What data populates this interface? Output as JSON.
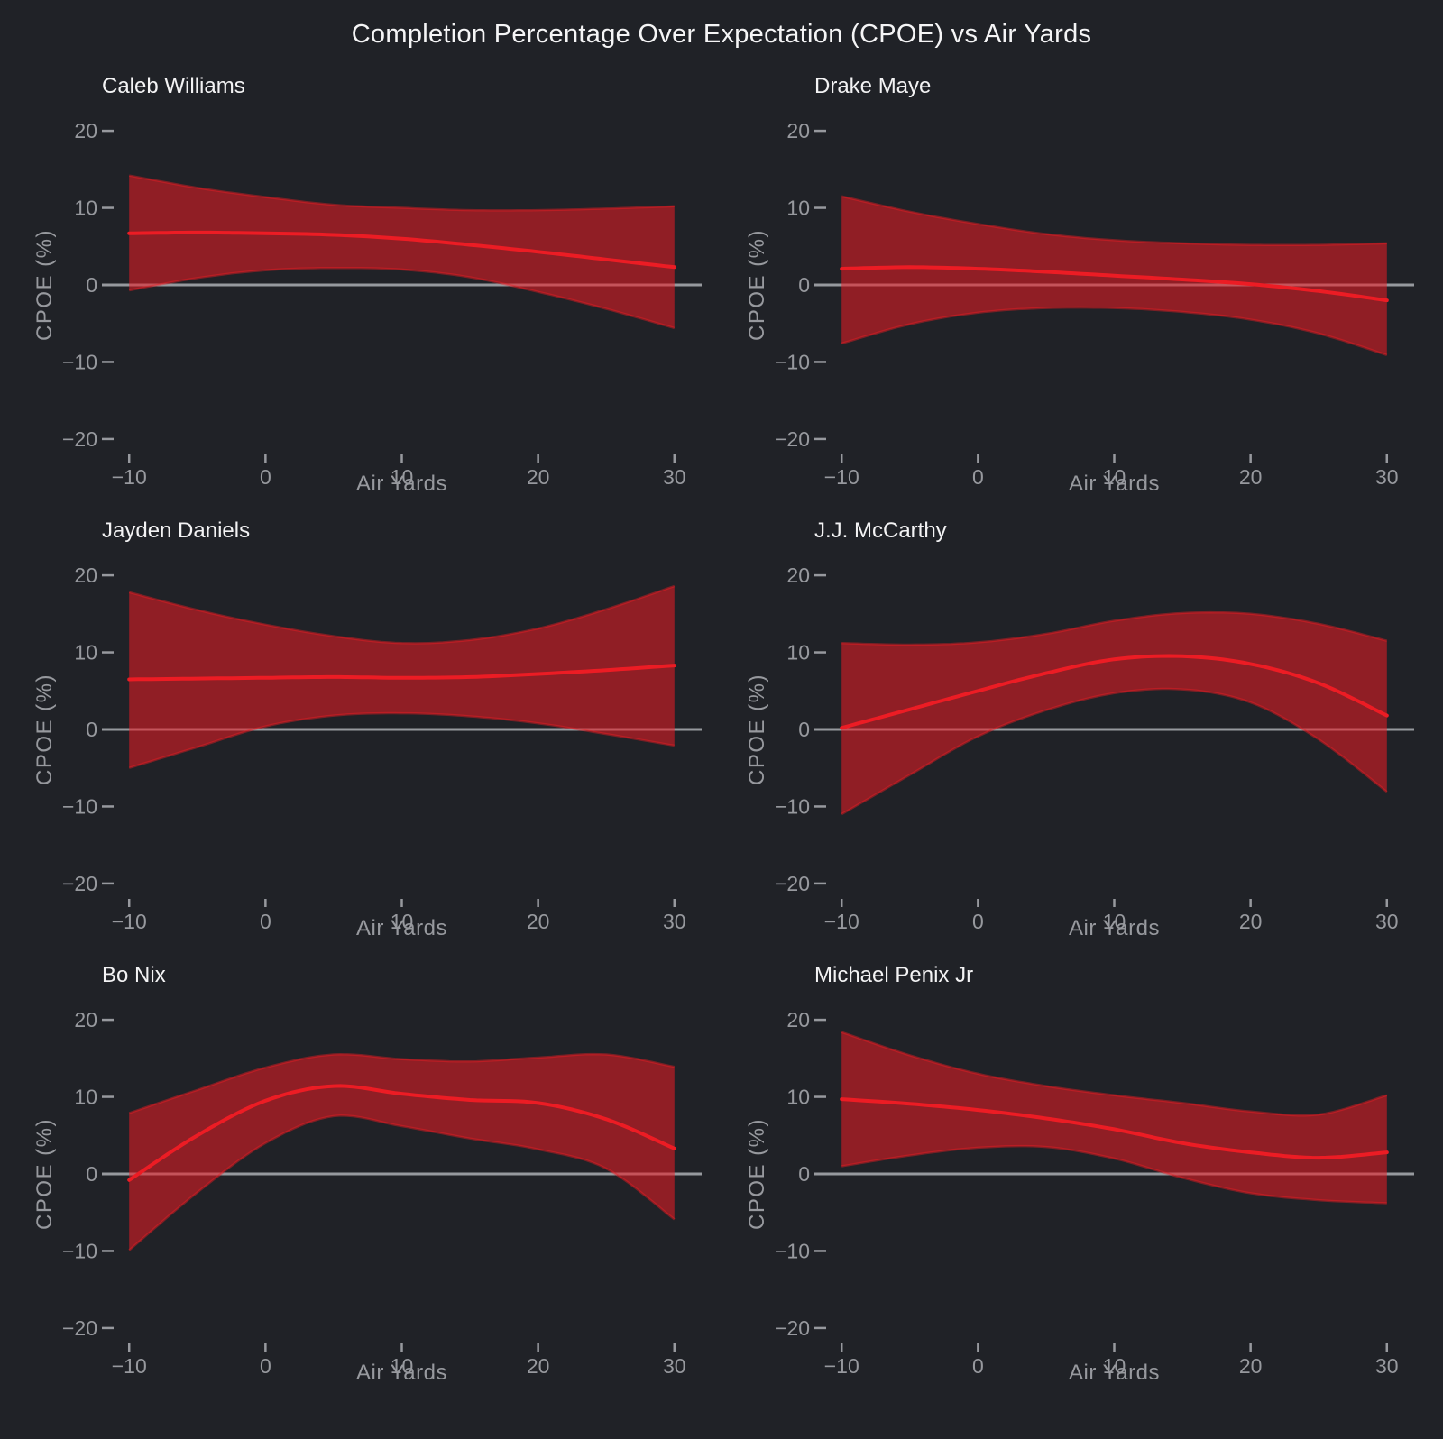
{
  "page_title": "Completion Percentage Over Expectation (CPOE) vs Air Yards",
  "axes": {
    "xlabel": "Air Yards",
    "ylabel": "CPOE (%)",
    "xlim": [
      -12,
      32
    ],
    "ylim": [
      -22,
      22
    ],
    "x_ticks": [
      {
        "v": -10,
        "label": "−10"
      },
      {
        "v": 0,
        "label": "0"
      },
      {
        "v": 10,
        "label": "10"
      },
      {
        "v": 20,
        "label": "20"
      },
      {
        "v": 30,
        "label": "30"
      }
    ],
    "y_ticks": [
      {
        "v": 20,
        "label": "20"
      },
      {
        "v": 10,
        "label": "10"
      },
      {
        "v": 0,
        "label": "0"
      },
      {
        "v": -10,
        "label": "−10"
      },
      {
        "v": -20,
        "label": "−20"
      }
    ],
    "grid": false,
    "legend": "none"
  },
  "style": {
    "background": "#202227",
    "band_color": "#ed1c24",
    "band_opacity": 0.55,
    "band_edge_color": "#ec1c24",
    "band_edge_opacity": 0.45,
    "line_color": "#ec1c24",
    "zero_line_color": "#96999e",
    "tick_color": "#97999e",
    "title_color": "#f5f5f6"
  },
  "chart_data": [
    {
      "type": "area",
      "title": "Caleb Williams",
      "x": [
        -10,
        -5,
        0,
        5,
        10,
        15,
        20,
        25,
        30
      ],
      "line": [
        6.7,
        6.8,
        6.7,
        6.5,
        6.0,
        5.2,
        4.3,
        3.3,
        2.3
      ],
      "upper": [
        14.2,
        12.6,
        11.4,
        10.4,
        10.0,
        9.7,
        9.7,
        9.9,
        10.2
      ],
      "lower": [
        -0.7,
        0.9,
        1.9,
        2.2,
        2.0,
        1.0,
        -0.9,
        -3.1,
        -5.6
      ]
    },
    {
      "type": "area",
      "title": "Drake Maye",
      "x": [
        -10,
        -5,
        0,
        5,
        10,
        15,
        20,
        25,
        30
      ],
      "line": [
        2.1,
        2.3,
        2.1,
        1.7,
        1.2,
        0.7,
        0.1,
        -0.8,
        -2.0
      ],
      "upper": [
        11.5,
        9.5,
        7.9,
        6.6,
        5.8,
        5.4,
        5.2,
        5.2,
        5.4
      ],
      "lower": [
        -7.6,
        -5.1,
        -3.6,
        -3.0,
        -3.0,
        -3.5,
        -4.5,
        -6.3,
        -9.1
      ]
    },
    {
      "type": "area",
      "title": "Jayden Daniels",
      "x": [
        -10,
        -5,
        0,
        5,
        10,
        15,
        20,
        25,
        30
      ],
      "line": [
        6.5,
        6.6,
        6.7,
        6.8,
        6.7,
        6.8,
        7.2,
        7.7,
        8.3
      ],
      "upper": [
        17.8,
        15.5,
        13.6,
        12.1,
        11.2,
        11.6,
        13.1,
        15.6,
        18.6
      ],
      "lower": [
        -5.0,
        -2.3,
        0.4,
        1.8,
        2.1,
        1.7,
        0.8,
        -0.6,
        -2.1
      ]
    },
    {
      "type": "area",
      "title": "J.J. McCarthy",
      "x": [
        -10,
        -5,
        0,
        5,
        10,
        15,
        20,
        25,
        30
      ],
      "line": [
        0.2,
        2.6,
        5.0,
        7.3,
        9.1,
        9.5,
        8.5,
        6.0,
        1.8
      ],
      "upper": [
        11.2,
        11.0,
        11.3,
        12.4,
        14.1,
        15.1,
        15.0,
        13.7,
        11.5
      ],
      "lower": [
        -11.0,
        -5.9,
        -0.9,
        2.5,
        4.7,
        5.2,
        3.5,
        -1.3,
        -8.1
      ]
    },
    {
      "type": "area",
      "title": "Bo Nix",
      "x": [
        -10,
        -5,
        0,
        5,
        10,
        15,
        20,
        25,
        30
      ],
      "line": [
        -0.8,
        5.0,
        9.5,
        11.4,
        10.4,
        9.6,
        9.2,
        7.1,
        3.3
      ],
      "upper": [
        7.9,
        10.9,
        13.8,
        15.5,
        14.9,
        14.6,
        15.1,
        15.5,
        13.9
      ],
      "lower": [
        -9.9,
        -2.4,
        4.0,
        7.5,
        6.2,
        4.6,
        3.2,
        0.7,
        -5.9
      ]
    },
    {
      "type": "area",
      "title": "Michael Penix Jr",
      "x": [
        -10,
        -5,
        0,
        5,
        10,
        15,
        20,
        25,
        30
      ],
      "line": [
        9.7,
        9.1,
        8.3,
        7.2,
        5.8,
        4.0,
        2.8,
        2.1,
        2.8
      ],
      "upper": [
        18.4,
        15.4,
        13.0,
        11.4,
        10.2,
        9.2,
        8.1,
        7.7,
        10.2
      ],
      "lower": [
        1.0,
        2.4,
        3.4,
        3.5,
        2.0,
        -0.5,
        -2.5,
        -3.4,
        -3.8
      ]
    }
  ]
}
